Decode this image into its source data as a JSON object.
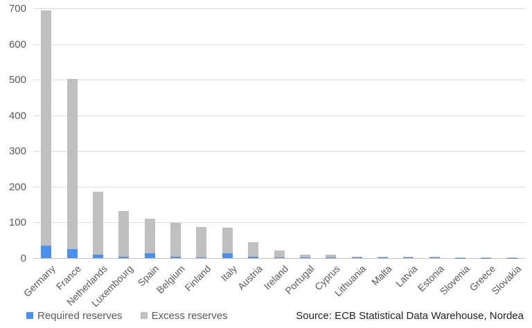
{
  "chart_data": {
    "type": "bar",
    "stacked": true,
    "title": "",
    "xlabel": "",
    "ylabel": "",
    "categories": [
      "Germany",
      "France",
      "Netherlands",
      "Luxembourg",
      "Spain",
      "Belgium",
      "Finland",
      "Italy",
      "Austria",
      "Ireland",
      "Portugal",
      "Cyprus",
      "Lithuania",
      "Malta",
      "Latvia",
      "Estonia",
      "Slovenia",
      "Greece",
      "Slovakia"
    ],
    "series": [
      {
        "name": "Required reserves",
        "color": "#4a90ee",
        "values": [
          35,
          25,
          10,
          4,
          13,
          4,
          1,
          14,
          3,
          2,
          1,
          1,
          1,
          1,
          1,
          1,
          0.5,
          0.5,
          0.5
        ]
      },
      {
        "name": "Excess reserves",
        "color": "#bfbfbf",
        "values": [
          660,
          477,
          176,
          127,
          97,
          94,
          87,
          71,
          42,
          20,
          8,
          9,
          3,
          2,
          2,
          3,
          1.5,
          1.5,
          1.5
        ]
      }
    ],
    "totals": [
      695,
      502,
      186,
      131,
      110,
      98,
      88,
      85,
      45,
      22,
      9,
      10,
      4,
      3,
      3,
      4,
      2,
      2,
      2
    ],
    "ylim": [
      0,
      700
    ],
    "yticks": [
      0,
      100,
      200,
      300,
      400,
      500,
      600,
      700
    ],
    "grid": true,
    "legend_position": "bottom-left",
    "source": "Source: ECB Statistical Data Warehouse, Nordea",
    "colors": {
      "required": "#4a90ee",
      "excess": "#bfbfbf",
      "gridline": "#dcdcdc",
      "axis_line": "#c4c4c4",
      "tick_text": "#595959",
      "source_text": "#1f1f1f"
    }
  }
}
